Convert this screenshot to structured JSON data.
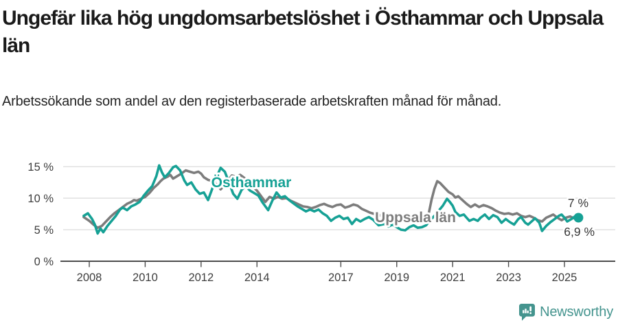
{
  "header": {
    "title": "Ungefär lika hög ungdomsarbetslöshet i Östhammar och Uppsala län",
    "subtitle": "Arbetssökande som andel av den registerbaserade arbetskraften månad för månad."
  },
  "chart_data": {
    "type": "line",
    "title": "Ungefär lika hög ungdomsarbetslöshet i Östhammar och Uppsala län",
    "subtitle": "Arbetssökande som andel av den registerbaserade arbetskraften månad för månad.",
    "xlabel": "",
    "ylabel": "%",
    "x_unit": "fractional year (monthly data)",
    "xlim": [
      2007.7,
      2025.7
    ],
    "ylim": [
      0,
      15.5
    ],
    "grid": "horizontal",
    "legend": "inline-labels",
    "yticks": {
      "values": [
        0,
        5,
        10,
        15
      ],
      "labels": [
        "0 %",
        "5 %",
        "10 %",
        "15 %"
      ]
    },
    "xticks": {
      "values": [
        2008,
        2010,
        2012,
        2014,
        2017,
        2019,
        2021,
        2023,
        2025
      ],
      "labels": [
        "2008",
        "2010",
        "2012",
        "2014",
        "2017",
        "2019",
        "2021",
        "2023",
        "2025"
      ]
    },
    "series": [
      {
        "name": "Uppsala län",
        "color": "#7c7c7c",
        "end_label": "7 %",
        "latest_value": 7.0,
        "end_dot": false,
        "points": [
          [
            2007.8,
            7.0
          ],
          [
            2008.0,
            6.4
          ],
          [
            2008.15,
            5.8
          ],
          [
            2008.3,
            5.3
          ],
          [
            2008.45,
            5.6
          ],
          [
            2008.6,
            6.3
          ],
          [
            2008.75,
            7.0
          ],
          [
            2008.9,
            7.6
          ],
          [
            2009.05,
            8.1
          ],
          [
            2009.2,
            8.6
          ],
          [
            2009.35,
            9.1
          ],
          [
            2009.5,
            9.4
          ],
          [
            2009.6,
            9.7
          ],
          [
            2009.7,
            9.6
          ],
          [
            2009.85,
            9.9
          ],
          [
            2010.0,
            10.2
          ],
          [
            2010.15,
            10.8
          ],
          [
            2010.3,
            11.6
          ],
          [
            2010.45,
            12.2
          ],
          [
            2010.55,
            12.7
          ],
          [
            2010.65,
            13.1
          ],
          [
            2010.8,
            13.4
          ],
          [
            2010.9,
            13.7
          ],
          [
            2011.0,
            13.1
          ],
          [
            2011.15,
            13.5
          ],
          [
            2011.3,
            13.9
          ],
          [
            2011.45,
            14.4
          ],
          [
            2011.6,
            14.2
          ],
          [
            2011.75,
            14.0
          ],
          [
            2011.9,
            14.2
          ],
          [
            2012.0,
            13.9
          ],
          [
            2012.1,
            13.3
          ],
          [
            2012.25,
            12.9
          ],
          [
            2012.4,
            12.7
          ],
          [
            2012.55,
            12.2
          ],
          [
            2012.7,
            11.4
          ],
          [
            2012.85,
            12.1
          ],
          [
            2013.0,
            13.0
          ],
          [
            2013.1,
            13.6
          ],
          [
            2013.25,
            13.4
          ],
          [
            2013.4,
            13.7
          ],
          [
            2013.55,
            13.2
          ],
          [
            2013.7,
            12.6
          ],
          [
            2013.85,
            11.9
          ],
          [
            2014.0,
            11.2
          ],
          [
            2014.15,
            10.3
          ],
          [
            2014.3,
            9.4
          ],
          [
            2014.45,
            10.2
          ],
          [
            2014.6,
            9.9
          ],
          [
            2014.75,
            10.2
          ],
          [
            2014.9,
            9.9
          ],
          [
            2015.05,
            10.0
          ],
          [
            2015.2,
            9.6
          ],
          [
            2015.35,
            9.3
          ],
          [
            2015.5,
            9.0
          ],
          [
            2015.65,
            8.7
          ],
          [
            2015.8,
            8.6
          ],
          [
            2015.95,
            8.4
          ],
          [
            2016.1,
            8.6
          ],
          [
            2016.25,
            8.9
          ],
          [
            2016.4,
            9.1
          ],
          [
            2016.55,
            8.8
          ],
          [
            2016.7,
            8.6
          ],
          [
            2016.85,
            8.9
          ],
          [
            2017.0,
            9.0
          ],
          [
            2017.15,
            8.5
          ],
          [
            2017.3,
            8.7
          ],
          [
            2017.45,
            9.0
          ],
          [
            2017.6,
            8.8
          ],
          [
            2017.75,
            8.3
          ],
          [
            2017.9,
            8.0
          ],
          [
            2018.05,
            7.7
          ],
          [
            2018.2,
            7.5
          ],
          [
            2018.35,
            7.2
          ],
          [
            2018.5,
            7.4
          ],
          [
            2018.7,
            7.2
          ],
          [
            2018.85,
            7.0
          ],
          [
            2019.0,
            7.0
          ],
          [
            2019.15,
            7.2
          ],
          [
            2019.3,
            6.7
          ],
          [
            2019.45,
            6.9
          ],
          [
            2019.6,
            6.4
          ],
          [
            2019.75,
            6.7
          ],
          [
            2019.9,
            6.3
          ],
          [
            2020.05,
            6.5
          ],
          [
            2020.15,
            7.7
          ],
          [
            2020.25,
            9.8
          ],
          [
            2020.35,
            11.5
          ],
          [
            2020.45,
            12.7
          ],
          [
            2020.55,
            12.4
          ],
          [
            2020.7,
            11.7
          ],
          [
            2020.85,
            11.0
          ],
          [
            2021.0,
            10.6
          ],
          [
            2021.1,
            10.1
          ],
          [
            2021.2,
            10.3
          ],
          [
            2021.35,
            9.7
          ],
          [
            2021.5,
            9.1
          ],
          [
            2021.65,
            8.6
          ],
          [
            2021.8,
            9.0
          ],
          [
            2021.95,
            8.6
          ],
          [
            2022.1,
            8.9
          ],
          [
            2022.25,
            8.7
          ],
          [
            2022.4,
            8.4
          ],
          [
            2022.55,
            8.0
          ],
          [
            2022.7,
            7.7
          ],
          [
            2022.85,
            7.5
          ],
          [
            2023.0,
            7.6
          ],
          [
            2023.15,
            7.4
          ],
          [
            2023.3,
            7.6
          ],
          [
            2023.45,
            7.2
          ],
          [
            2023.6,
            7.0
          ],
          [
            2023.75,
            7.2
          ],
          [
            2023.9,
            6.9
          ],
          [
            2024.05,
            6.5
          ],
          [
            2024.2,
            6.3
          ],
          [
            2024.35,
            6.9
          ],
          [
            2024.5,
            7.2
          ],
          [
            2024.6,
            7.4
          ],
          [
            2024.75,
            6.9
          ],
          [
            2024.9,
            6.5
          ],
          [
            2025.05,
            6.9
          ],
          [
            2025.2,
            7.1
          ],
          [
            2025.35,
            6.8
          ],
          [
            2025.5,
            7.0
          ]
        ]
      },
      {
        "name": "Östhammar",
        "color": "#16a195",
        "end_label": "6,9 %",
        "latest_value": 6.9,
        "end_dot": true,
        "points": [
          [
            2007.8,
            7.2
          ],
          [
            2007.95,
            7.6
          ],
          [
            2008.1,
            6.7
          ],
          [
            2008.2,
            5.8
          ],
          [
            2008.3,
            4.4
          ],
          [
            2008.4,
            5.2
          ],
          [
            2008.5,
            4.6
          ],
          [
            2008.65,
            5.6
          ],
          [
            2008.8,
            6.4
          ],
          [
            2008.95,
            7.2
          ],
          [
            2009.1,
            8.2
          ],
          [
            2009.2,
            8.5
          ],
          [
            2009.35,
            8.1
          ],
          [
            2009.5,
            8.7
          ],
          [
            2009.65,
            9.0
          ],
          [
            2009.8,
            9.4
          ],
          [
            2009.95,
            10.4
          ],
          [
            2010.1,
            11.2
          ],
          [
            2010.25,
            11.9
          ],
          [
            2010.4,
            13.5
          ],
          [
            2010.5,
            15.2
          ],
          [
            2010.6,
            14.1
          ],
          [
            2010.7,
            13.3
          ],
          [
            2010.85,
            14.0
          ],
          [
            2011.0,
            14.9
          ],
          [
            2011.1,
            15.1
          ],
          [
            2011.25,
            14.4
          ],
          [
            2011.4,
            12.8
          ],
          [
            2011.5,
            12.1
          ],
          [
            2011.65,
            12.5
          ],
          [
            2011.8,
            11.4
          ],
          [
            2011.95,
            10.7
          ],
          [
            2012.1,
            10.9
          ],
          [
            2012.25,
            9.7
          ],
          [
            2012.4,
            11.5
          ],
          [
            2012.55,
            13.3
          ],
          [
            2012.7,
            14.8
          ],
          [
            2012.85,
            14.2
          ],
          [
            2013.0,
            12.5
          ],
          [
            2013.15,
            10.7
          ],
          [
            2013.3,
            9.9
          ],
          [
            2013.45,
            11.3
          ],
          [
            2013.6,
            11.9
          ],
          [
            2013.75,
            11.2
          ],
          [
            2013.9,
            10.8
          ],
          [
            2014.05,
            10.4
          ],
          [
            2014.2,
            9.3
          ],
          [
            2014.4,
            8.1
          ],
          [
            2014.55,
            9.6
          ],
          [
            2014.7,
            10.9
          ],
          [
            2014.85,
            10.1
          ],
          [
            2015.0,
            10.3
          ],
          [
            2015.15,
            9.7
          ],
          [
            2015.3,
            9.2
          ],
          [
            2015.45,
            8.7
          ],
          [
            2015.6,
            8.3
          ],
          [
            2015.75,
            7.9
          ],
          [
            2015.9,
            8.2
          ],
          [
            2016.05,
            7.9
          ],
          [
            2016.2,
            8.2
          ],
          [
            2016.35,
            7.6
          ],
          [
            2016.5,
            7.2
          ],
          [
            2016.65,
            6.4
          ],
          [
            2016.8,
            6.9
          ],
          [
            2016.95,
            7.2
          ],
          [
            2017.1,
            6.7
          ],
          [
            2017.25,
            6.9
          ],
          [
            2017.4,
            5.9
          ],
          [
            2017.55,
            6.7
          ],
          [
            2017.7,
            6.3
          ],
          [
            2017.85,
            6.7
          ],
          [
            2018.0,
            7.0
          ],
          [
            2018.15,
            6.6
          ],
          [
            2018.35,
            5.7
          ],
          [
            2018.55,
            5.9
          ],
          [
            2018.7,
            5.5
          ],
          [
            2018.85,
            5.8
          ],
          [
            2019.0,
            5.4
          ],
          [
            2019.15,
            5.0
          ],
          [
            2019.3,
            4.9
          ],
          [
            2019.45,
            5.4
          ],
          [
            2019.6,
            5.7
          ],
          [
            2019.75,
            5.3
          ],
          [
            2019.9,
            5.4
          ],
          [
            2020.05,
            5.7
          ],
          [
            2020.2,
            6.5
          ],
          [
            2020.35,
            7.2
          ],
          [
            2020.5,
            8.0
          ],
          [
            2020.65,
            8.8
          ],
          [
            2020.8,
            9.9
          ],
          [
            2020.9,
            9.4
          ],
          [
            2021.0,
            8.8
          ],
          [
            2021.1,
            7.8
          ],
          [
            2021.25,
            7.2
          ],
          [
            2021.4,
            7.4
          ],
          [
            2021.5,
            6.9
          ],
          [
            2021.6,
            6.4
          ],
          [
            2021.75,
            6.7
          ],
          [
            2021.9,
            6.4
          ],
          [
            2022.0,
            6.9
          ],
          [
            2022.15,
            7.4
          ],
          [
            2022.3,
            6.7
          ],
          [
            2022.45,
            7.3
          ],
          [
            2022.6,
            7.0
          ],
          [
            2022.75,
            6.1
          ],
          [
            2022.9,
            6.7
          ],
          [
            2023.05,
            6.2
          ],
          [
            2023.2,
            5.8
          ],
          [
            2023.35,
            6.7
          ],
          [
            2023.45,
            7.0
          ],
          [
            2023.6,
            6.1
          ],
          [
            2023.7,
            5.8
          ],
          [
            2023.85,
            6.4
          ],
          [
            2023.95,
            6.8
          ],
          [
            2024.1,
            6.1
          ],
          [
            2024.2,
            4.8
          ],
          [
            2024.35,
            5.6
          ],
          [
            2024.5,
            6.2
          ],
          [
            2024.65,
            6.7
          ],
          [
            2024.8,
            7.2
          ],
          [
            2024.9,
            7.4
          ],
          [
            2025.0,
            6.9
          ],
          [
            2025.1,
            6.3
          ],
          [
            2025.25,
            6.7
          ],
          [
            2025.4,
            7.2
          ],
          [
            2025.5,
            6.9
          ]
        ]
      }
    ]
  },
  "footer": {
    "brand": "Newsworthy",
    "logo_icon": "newsworthy-speech-bubble-bar-chart-icon",
    "brand_color": "#44948E"
  }
}
